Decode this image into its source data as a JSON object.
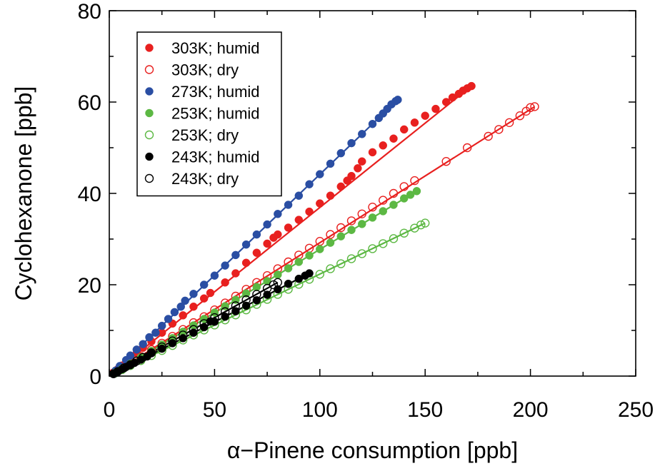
{
  "chart_data": {
    "type": "scatter",
    "xlabel": "α−Pinene consumption [ppb]",
    "ylabel": "Cyclohexanone [ppb]",
    "xlim": [
      0,
      250
    ],
    "ylim": [
      0,
      80
    ],
    "x_ticks": [
      0,
      50,
      100,
      150,
      200,
      250
    ],
    "y_ticks": [
      0,
      20,
      40,
      60,
      80
    ],
    "x_tick_labels": [
      "0",
      "50",
      "100",
      "150",
      "200",
      "250"
    ],
    "y_tick_labels": [
      "0",
      "20",
      "40",
      "60",
      "80"
    ],
    "grid": false,
    "legend_position": "top-left",
    "series": [
      {
        "name": "303K; humid",
        "color": "#e8201f",
        "marker": "filled-circle",
        "fit_line": [
          [
            0,
            0
          ],
          [
            172,
            63.5
          ]
        ],
        "points": [
          [
            2,
            0.8
          ],
          [
            4,
            1.5
          ],
          [
            6,
            2.3
          ],
          [
            8,
            3.1
          ],
          [
            10,
            3.8
          ],
          [
            13,
            5
          ],
          [
            16,
            6.2
          ],
          [
            20,
            7.6
          ],
          [
            25,
            9.5
          ],
          [
            30,
            11.5
          ],
          [
            35,
            13.3
          ],
          [
            40,
            15.2
          ],
          [
            45,
            17
          ],
          [
            48,
            18.2
          ],
          [
            55,
            20.5
          ],
          [
            60,
            22.5
          ],
          [
            65,
            24.8
          ],
          [
            70,
            27
          ],
          [
            75,
            29
          ],
          [
            78,
            30.3
          ],
          [
            80,
            31
          ],
          [
            85,
            32.5
          ],
          [
            90,
            34.2
          ],
          [
            95,
            36
          ],
          [
            100,
            37.8
          ],
          [
            105,
            39.5
          ],
          [
            110,
            41.5
          ],
          [
            113,
            42.8
          ],
          [
            115,
            43.8
          ],
          [
            118,
            45.5
          ],
          [
            120,
            47
          ],
          [
            125,
            49
          ],
          [
            130,
            50.5
          ],
          [
            135,
            52
          ],
          [
            140,
            54
          ],
          [
            145,
            55.5
          ],
          [
            150,
            57
          ],
          [
            155,
            58.5
          ],
          [
            160,
            60
          ],
          [
            163,
            61
          ],
          [
            166,
            61.8
          ],
          [
            168,
            62.5
          ],
          [
            170,
            63
          ],
          [
            172,
            63.5
          ]
        ]
      },
      {
        "name": "303K; dry",
        "color": "#e8201f",
        "marker": "open-circle",
        "fit_line": [
          [
            0,
            0
          ],
          [
            202,
            59
          ]
        ],
        "points": [
          [
            3,
            0.8
          ],
          [
            6,
            1.7
          ],
          [
            10,
            2.8
          ],
          [
            15,
            4.3
          ],
          [
            20,
            5.8
          ],
          [
            25,
            7.2
          ],
          [
            30,
            8.7
          ],
          [
            35,
            10.2
          ],
          [
            40,
            11.7
          ],
          [
            45,
            13
          ],
          [
            50,
            14.5
          ],
          [
            55,
            16
          ],
          [
            60,
            17.5
          ],
          [
            65,
            19
          ],
          [
            70,
            20.5
          ],
          [
            75,
            22
          ],
          [
            80,
            23.5
          ],
          [
            85,
            25
          ],
          [
            90,
            26.5
          ],
          [
            95,
            28
          ],
          [
            100,
            29.5
          ],
          [
            105,
            31
          ],
          [
            110,
            32.5
          ],
          [
            115,
            34
          ],
          [
            120,
            35.5
          ],
          [
            125,
            37
          ],
          [
            130,
            38.5
          ],
          [
            135,
            40
          ],
          [
            140,
            41.5
          ],
          [
            145,
            42.8
          ],
          [
            160,
            47
          ],
          [
            170,
            50
          ],
          [
            180,
            52.5
          ],
          [
            185,
            54
          ],
          [
            190,
            55.5
          ],
          [
            195,
            57
          ],
          [
            198,
            58
          ],
          [
            200,
            58.8
          ],
          [
            202,
            59
          ]
        ]
      },
      {
        "name": "273K; humid",
        "color": "#2a4ea3",
        "marker": "filled-circle",
        "fit_line": [
          [
            0,
            0
          ],
          [
            137,
            60.5
          ]
        ],
        "points": [
          [
            3,
            1.2
          ],
          [
            5,
            2.2
          ],
          [
            8,
            3.5
          ],
          [
            10,
            4.5
          ],
          [
            13,
            5.8
          ],
          [
            16,
            7
          ],
          [
            19,
            8.5
          ],
          [
            22,
            9.5
          ],
          [
            25,
            11
          ],
          [
            28,
            12.5
          ],
          [
            31,
            14
          ],
          [
            34,
            15.2
          ],
          [
            36,
            16.5
          ],
          [
            40,
            18
          ],
          [
            45,
            20
          ],
          [
            50,
            22
          ],
          [
            55,
            24.2
          ],
          [
            60,
            26.5
          ],
          [
            65,
            28.8
          ],
          [
            70,
            31
          ],
          [
            75,
            33.2
          ],
          [
            80,
            35.5
          ],
          [
            85,
            37.5
          ],
          [
            90,
            39.5
          ],
          [
            95,
            42
          ],
          [
            100,
            44.2
          ],
          [
            105,
            46.5
          ],
          [
            110,
            48.8
          ],
          [
            115,
            51
          ],
          [
            120,
            53
          ],
          [
            125,
            55.2
          ],
          [
            128,
            56.5
          ],
          [
            130,
            57.5
          ],
          [
            132,
            58.5
          ],
          [
            134,
            59.5
          ],
          [
            136,
            60.2
          ],
          [
            137,
            60.5
          ]
        ]
      },
      {
        "name": "253K; humid",
        "color": "#5cb843",
        "marker": "filled-circle",
        "fit_line": [
          [
            0,
            0
          ],
          [
            146,
            40.5
          ]
        ],
        "points": [
          [
            3,
            0.8
          ],
          [
            6,
            1.6
          ],
          [
            10,
            2.7
          ],
          [
            15,
            4.1
          ],
          [
            20,
            5.5
          ],
          [
            25,
            6.9
          ],
          [
            30,
            8.3
          ],
          [
            35,
            9.7
          ],
          [
            40,
            11.1
          ],
          [
            45,
            12.5
          ],
          [
            50,
            13.9
          ],
          [
            55,
            15.3
          ],
          [
            60,
            16.7
          ],
          [
            65,
            18.1
          ],
          [
            70,
            19.5
          ],
          [
            75,
            20.8
          ],
          [
            80,
            22.2
          ],
          [
            85,
            23.6
          ],
          [
            90,
            25
          ],
          [
            95,
            26.4
          ],
          [
            100,
            27.8
          ],
          [
            105,
            29.2
          ],
          [
            110,
            30.6
          ],
          [
            115,
            32
          ],
          [
            120,
            33.3
          ],
          [
            125,
            34.7
          ],
          [
            130,
            36.1
          ],
          [
            135,
            37.5
          ],
          [
            140,
            38.9
          ],
          [
            143,
            39.7
          ],
          [
            146,
            40.5
          ]
        ]
      },
      {
        "name": "253K; dry",
        "color": "#5cb843",
        "marker": "open-circle",
        "fit_line": [
          [
            0,
            0
          ],
          [
            150,
            33.5
          ]
        ],
        "points": [
          [
            3,
            0.7
          ],
          [
            6,
            1.4
          ],
          [
            10,
            2.3
          ],
          [
            15,
            3.4
          ],
          [
            20,
            4.5
          ],
          [
            25,
            5.6
          ],
          [
            30,
            6.7
          ],
          [
            35,
            7.9
          ],
          [
            40,
            9
          ],
          [
            45,
            10.1
          ],
          [
            50,
            11.2
          ],
          [
            55,
            12.3
          ],
          [
            60,
            13.4
          ],
          [
            65,
            14.5
          ],
          [
            70,
            15.7
          ],
          [
            75,
            16.8
          ],
          [
            80,
            17.9
          ],
          [
            85,
            19
          ],
          [
            90,
            20.1
          ],
          [
            95,
            21.2
          ],
          [
            100,
            22.3
          ],
          [
            105,
            23.5
          ],
          [
            110,
            24.6
          ],
          [
            115,
            25.7
          ],
          [
            120,
            26.8
          ],
          [
            125,
            27.9
          ],
          [
            130,
            29
          ],
          [
            135,
            30.1
          ],
          [
            140,
            31.3
          ],
          [
            145,
            32.4
          ],
          [
            148,
            33.1
          ],
          [
            150,
            33.5
          ]
        ]
      },
      {
        "name": "243K; humid",
        "color": "#000000",
        "marker": "filled-circle",
        "fit_line": [
          [
            0,
            0
          ],
          [
            95,
            22.5
          ]
        ],
        "points": [
          [
            2,
            0.5
          ],
          [
            4,
            1
          ],
          [
            6,
            1.5
          ],
          [
            8,
            2
          ],
          [
            10,
            2.4
          ],
          [
            12,
            2.9
          ],
          [
            15,
            3.6
          ],
          [
            18,
            4.3
          ],
          [
            20,
            5
          ],
          [
            25,
            6
          ],
          [
            30,
            7.2
          ],
          [
            35,
            8.3
          ],
          [
            40,
            9.5
          ],
          [
            45,
            10.7
          ],
          [
            48,
            12
          ],
          [
            50,
            11.9
          ],
          [
            55,
            13
          ],
          [
            60,
            14.2
          ],
          [
            65,
            15.4
          ],
          [
            70,
            16.6
          ],
          [
            75,
            17.8
          ],
          [
            80,
            19
          ],
          [
            85,
            20.2
          ],
          [
            90,
            21.3
          ],
          [
            93,
            22
          ],
          [
            95,
            22.5
          ]
        ]
      },
      {
        "name": "243K; dry",
        "color": "#000000",
        "marker": "open-circle",
        "fit_line": [
          [
            0,
            0
          ],
          [
            80,
            20.5
          ]
        ],
        "points": [
          [
            2,
            0.5
          ],
          [
            4,
            1
          ],
          [
            7,
            1.8
          ],
          [
            10,
            2.5
          ],
          [
            13,
            3.3
          ],
          [
            16,
            4.1
          ],
          [
            20,
            5.1
          ],
          [
            25,
            6.4
          ],
          [
            30,
            7.7
          ],
          [
            35,
            9
          ],
          [
            40,
            10.2
          ],
          [
            45,
            11.5
          ],
          [
            50,
            12.8
          ],
          [
            55,
            14.1
          ],
          [
            60,
            15.4
          ],
          [
            65,
            16.7
          ],
          [
            70,
            17.9
          ],
          [
            75,
            19.2
          ],
          [
            78,
            20
          ],
          [
            80,
            20.5
          ]
        ]
      }
    ]
  }
}
